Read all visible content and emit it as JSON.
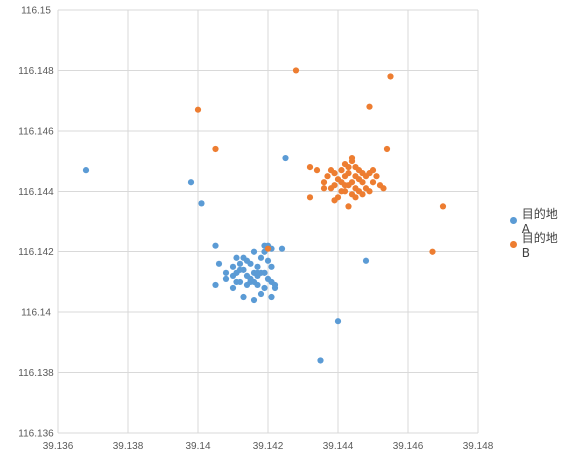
{
  "chart_data": {
    "type": "scatter",
    "title": "",
    "xlabel": "",
    "ylabel": "",
    "xlim": [
      39.136,
      39.148
    ],
    "ylim": [
      116.136,
      116.15
    ],
    "x_ticks": [
      "39.136",
      "39.138",
      "39.14",
      "39.142",
      "39.144",
      "39.146",
      "39.148"
    ],
    "y_ticks": [
      "116.136",
      "116.138",
      "116.14",
      "116.142",
      "116.144",
      "116.146",
      "116.148",
      "116.15"
    ],
    "grid": true,
    "legend_position": "right",
    "series": [
      {
        "name": "目的地 A",
        "color": "#5b9bd5",
        "points": [
          [
            39.1368,
            116.1447
          ],
          [
            39.1398,
            116.1443
          ],
          [
            39.1401,
            116.1436
          ],
          [
            39.1425,
            116.1451
          ],
          [
            39.1405,
            116.1422
          ],
          [
            39.1406,
            116.1416
          ],
          [
            39.1408,
            116.1411
          ],
          [
            39.141,
            116.1412
          ],
          [
            39.1411,
            116.1418
          ],
          [
            39.1412,
            116.1416
          ],
          [
            39.1413,
            116.1414
          ],
          [
            39.1414,
            116.1412
          ],
          [
            39.1415,
            116.141
          ],
          [
            39.1416,
            116.1413
          ],
          [
            39.1417,
            116.1409
          ],
          [
            39.1418,
            116.1418
          ],
          [
            39.1419,
            116.142
          ],
          [
            39.142,
            116.1422
          ],
          [
            39.142,
            116.1417
          ],
          [
            39.1421,
            116.1415
          ],
          [
            39.1418,
            116.1413
          ],
          [
            39.1417,
            116.1412
          ],
          [
            39.1416,
            116.141
          ],
          [
            39.1414,
            116.1409
          ],
          [
            39.1412,
            116.141
          ],
          [
            39.1411,
            116.1413
          ],
          [
            39.141,
            116.1415
          ],
          [
            39.1413,
            116.1418
          ],
          [
            39.1415,
            116.1416
          ],
          [
            39.1417,
            116.1415
          ],
          [
            39.1419,
            116.1413
          ],
          [
            39.1421,
            116.141
          ],
          [
            39.1422,
            116.1408
          ],
          [
            39.1421,
            116.1405
          ],
          [
            39.1419,
            116.1408
          ],
          [
            39.1418,
            116.1406
          ],
          [
            39.1416,
            116.1404
          ],
          [
            39.1413,
            116.1405
          ],
          [
            39.1411,
            116.141
          ],
          [
            39.1412,
            116.1414
          ],
          [
            39.1414,
            116.1417
          ],
          [
            39.1416,
            116.142
          ],
          [
            39.1419,
            116.1422
          ],
          [
            39.1421,
            116.1421
          ],
          [
            39.1424,
            116.1421
          ],
          [
            39.1405,
            116.1409
          ],
          [
            39.1408,
            116.1413
          ],
          [
            39.141,
            116.1408
          ],
          [
            39.1415,
            116.1411
          ],
          [
            39.1417,
            116.1413
          ],
          [
            39.142,
            116.1411
          ],
          [
            39.1422,
            116.1409
          ],
          [
            39.144,
            116.1397
          ],
          [
            39.1448,
            116.1417
          ],
          [
            39.1435,
            116.1384
          ]
        ]
      },
      {
        "name": "目的地 B",
        "color": "#ed7d31",
        "points": [
          [
            39.1428,
            116.148
          ],
          [
            39.1455,
            116.1478
          ],
          [
            39.1449,
            116.1468
          ],
          [
            39.14,
            116.1467
          ],
          [
            39.1405,
            116.1454
          ],
          [
            39.1454,
            116.1454
          ],
          [
            39.147,
            116.1435
          ],
          [
            39.1467,
            116.142
          ],
          [
            39.142,
            116.1421
          ],
          [
            39.1432,
            116.1438
          ],
          [
            39.1432,
            116.1448
          ],
          [
            39.1434,
            116.1447
          ],
          [
            39.1436,
            116.1443
          ],
          [
            39.1437,
            116.1445
          ],
          [
            39.1438,
            116.1441
          ],
          [
            39.1439,
            116.1446
          ],
          [
            39.144,
            116.1444
          ],
          [
            39.1441,
            116.1447
          ],
          [
            39.1442,
            116.1445
          ],
          [
            39.1442,
            116.1442
          ],
          [
            39.1443,
            116.1448
          ],
          [
            39.1443,
            116.1446
          ],
          [
            39.1444,
            116.1443
          ],
          [
            39.1444,
            116.145
          ],
          [
            39.1445,
            116.1441
          ],
          [
            39.1445,
            116.1445
          ],
          [
            39.1446,
            116.1447
          ],
          [
            39.1446,
            116.144
          ],
          [
            39.1447,
            116.1443
          ],
          [
            39.1448,
            116.1445
          ],
          [
            39.1448,
            116.1441
          ],
          [
            39.1449,
            116.1446
          ],
          [
            39.145,
            116.1443
          ],
          [
            39.1451,
            116.1445
          ],
          [
            39.1452,
            116.1442
          ],
          [
            39.1453,
            116.1441
          ],
          [
            39.1441,
            116.144
          ],
          [
            39.144,
            116.1438
          ],
          [
            39.1439,
            116.1437
          ],
          [
            39.1443,
            116.1435
          ],
          [
            39.1444,
            116.1439
          ],
          [
            39.1445,
            116.1438
          ],
          [
            39.1447,
            116.1439
          ],
          [
            39.1442,
            116.1449
          ],
          [
            39.1444,
            116.1451
          ],
          [
            39.1446,
            116.1444
          ],
          [
            39.1438,
            116.1447
          ],
          [
            39.1436,
            116.1441
          ],
          [
            39.1449,
            116.144
          ],
          [
            39.145,
            116.1447
          ],
          [
            39.1443,
            116.1442
          ],
          [
            39.1441,
            116.1443
          ],
          [
            39.1447,
            116.1446
          ],
          [
            39.1445,
            116.1448
          ],
          [
            39.1439,
            116.1442
          ],
          [
            39.1442,
            116.144
          ]
        ]
      }
    ]
  }
}
